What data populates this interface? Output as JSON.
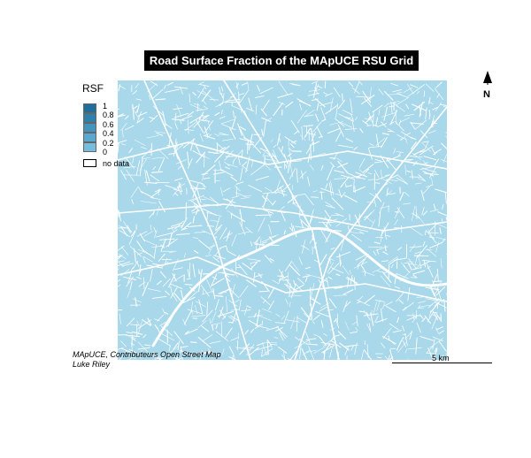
{
  "title": "Road Surface Fraction of the MApUCE RSU Grid",
  "legend": {
    "title": "RSF",
    "items": [
      {
        "label": "1",
        "color": "#1f6e9c"
      },
      {
        "label": "0.8",
        "color": "#2f80ad"
      },
      {
        "label": "0.6",
        "color": "#4494c0"
      },
      {
        "label": "0.4",
        "color": "#5aa7d0"
      },
      {
        "label": "0.2",
        "color": "#75bcdf"
      },
      {
        "label": "0",
        "color": "#a8d8ea"
      }
    ],
    "no_data_label": "no data"
  },
  "north_arrow": {
    "label": "N"
  },
  "credits": {
    "line1": "MApUCE, Contributeurs Open Street Map",
    "line2": "Luke Riley"
  },
  "scale_bar": {
    "label": "5 km"
  },
  "colors": {
    "fill": "#a8d8ea",
    "roads": "#ffffff",
    "background": "#ffffff",
    "title_bg": "#000000"
  },
  "icons": [
    "north-arrow-icon"
  ]
}
